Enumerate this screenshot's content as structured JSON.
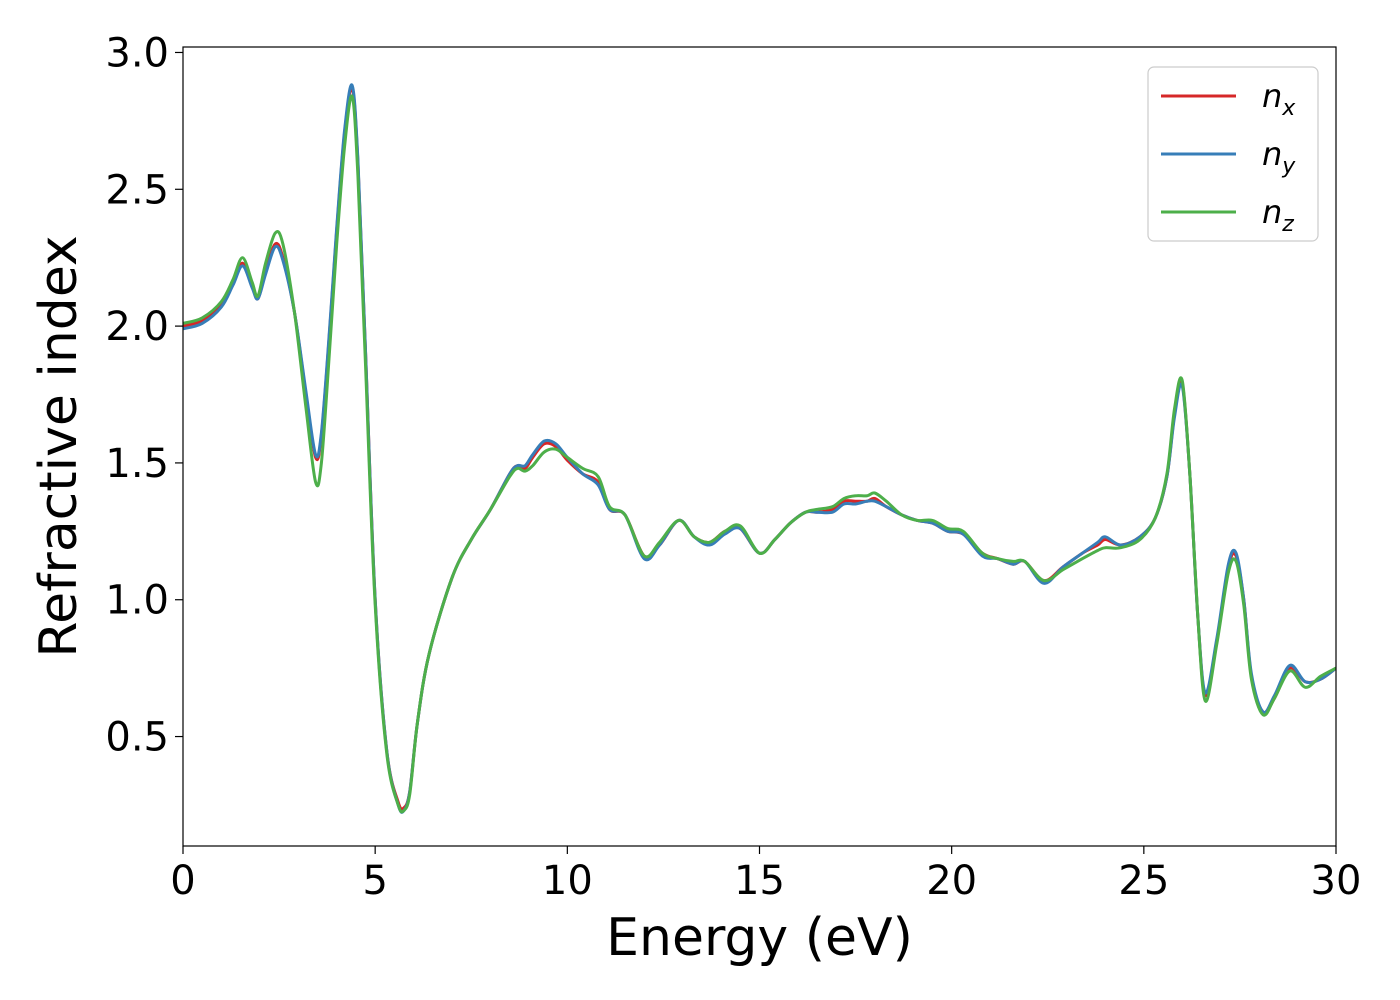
{
  "chart_data": {
    "type": "line",
    "title": "",
    "xlabel": "Energy (eV)",
    "ylabel": "Refractive index",
    "xlim": [
      0,
      30
    ],
    "ylim": [
      0.1,
      3.02
    ],
    "xticks": [
      0,
      5,
      10,
      15,
      20,
      25,
      30
    ],
    "yticks": [
      0.5,
      1.0,
      1.5,
      2.0,
      2.5,
      3.0
    ],
    "xtick_labels": [
      "0",
      "5",
      "10",
      "15",
      "20",
      "25",
      "30"
    ],
    "ytick_labels": [
      "0.5",
      "1.0",
      "1.5",
      "2.0",
      "2.5",
      "3.0"
    ],
    "grid": false,
    "legend_position": "top-right",
    "series": [
      {
        "name": "n_x",
        "legend_base": "n",
        "legend_sub": "x",
        "color": "#d62728",
        "x": [
          0,
          0.5,
          1.0,
          1.3,
          1.55,
          1.8,
          1.95,
          2.15,
          2.4,
          2.6,
          2.9,
          3.2,
          3.45,
          3.6,
          3.8,
          4.0,
          4.2,
          4.4,
          4.55,
          4.75,
          5.0,
          5.3,
          5.6,
          5.75,
          5.9,
          6.1,
          6.4,
          7.0,
          7.5,
          8.0,
          8.5,
          8.7,
          8.9,
          9.1,
          9.4,
          9.7,
          10.0,
          10.4,
          10.8,
          11.1,
          11.5,
          12.0,
          12.4,
          12.9,
          13.3,
          13.7,
          14.1,
          14.5,
          15.0,
          15.4,
          15.8,
          16.2,
          16.5,
          16.9,
          17.2,
          17.5,
          17.8,
          18.0,
          18.3,
          18.7,
          19.1,
          19.5,
          19.9,
          20.3,
          20.8,
          21.2,
          21.6,
          21.9,
          22.4,
          22.9,
          23.4,
          23.8,
          24.0,
          24.4,
          24.9,
          25.3,
          25.6,
          25.8,
          26.0,
          26.2,
          26.4,
          26.6,
          26.9,
          27.2,
          27.4,
          27.6,
          27.8,
          28.1,
          28.4,
          28.8,
          29.2,
          29.6,
          30.0
        ],
        "values": [
          2.0,
          2.02,
          2.08,
          2.16,
          2.23,
          2.15,
          2.1,
          2.2,
          2.3,
          2.25,
          2.05,
          1.75,
          1.52,
          1.6,
          1.95,
          2.35,
          2.7,
          2.87,
          2.6,
          1.9,
          1.0,
          0.45,
          0.26,
          0.24,
          0.3,
          0.55,
          0.8,
          1.08,
          1.22,
          1.33,
          1.46,
          1.49,
          1.48,
          1.52,
          1.57,
          1.56,
          1.51,
          1.46,
          1.43,
          1.33,
          1.31,
          1.16,
          1.2,
          1.29,
          1.23,
          1.21,
          1.25,
          1.26,
          1.17,
          1.22,
          1.28,
          1.32,
          1.32,
          1.33,
          1.36,
          1.36,
          1.36,
          1.37,
          1.34,
          1.31,
          1.29,
          1.28,
          1.25,
          1.24,
          1.17,
          1.15,
          1.13,
          1.14,
          1.07,
          1.12,
          1.17,
          1.2,
          1.22,
          1.2,
          1.23,
          1.3,
          1.45,
          1.68,
          1.79,
          1.45,
          0.95,
          0.65,
          0.85,
          1.12,
          1.16,
          1.0,
          0.72,
          0.59,
          0.64,
          0.75,
          0.7,
          0.71,
          0.75
        ]
      },
      {
        "name": "n_y",
        "legend_base": "n",
        "legend_sub": "y",
        "color": "#377eb8",
        "x": [
          0,
          0.5,
          1.0,
          1.3,
          1.55,
          1.8,
          1.95,
          2.15,
          2.4,
          2.6,
          2.9,
          3.2,
          3.45,
          3.6,
          3.8,
          4.0,
          4.2,
          4.4,
          4.55,
          4.75,
          5.0,
          5.3,
          5.6,
          5.75,
          5.9,
          6.1,
          6.4,
          7.0,
          7.5,
          8.0,
          8.5,
          8.7,
          8.9,
          9.1,
          9.4,
          9.7,
          10.0,
          10.4,
          10.8,
          11.1,
          11.5,
          12.0,
          12.4,
          12.9,
          13.3,
          13.7,
          14.1,
          14.5,
          15.0,
          15.4,
          15.8,
          16.2,
          16.5,
          16.9,
          17.2,
          17.5,
          17.8,
          18.0,
          18.3,
          18.7,
          19.1,
          19.5,
          19.9,
          20.3,
          20.8,
          21.2,
          21.6,
          21.9,
          22.4,
          22.9,
          23.4,
          23.8,
          24.0,
          24.4,
          24.9,
          25.3,
          25.6,
          25.8,
          26.0,
          26.2,
          26.4,
          26.6,
          26.9,
          27.2,
          27.4,
          27.6,
          27.8,
          28.1,
          28.4,
          28.8,
          29.2,
          29.6,
          30.0
        ],
        "values": [
          1.99,
          2.01,
          2.07,
          2.15,
          2.22,
          2.14,
          2.1,
          2.19,
          2.29,
          2.24,
          2.05,
          1.76,
          1.53,
          1.61,
          1.96,
          2.36,
          2.71,
          2.88,
          2.61,
          1.9,
          1.0,
          0.45,
          0.25,
          0.23,
          0.3,
          0.55,
          0.8,
          1.08,
          1.22,
          1.33,
          1.46,
          1.49,
          1.49,
          1.53,
          1.58,
          1.57,
          1.52,
          1.46,
          1.42,
          1.33,
          1.31,
          1.15,
          1.2,
          1.29,
          1.23,
          1.2,
          1.24,
          1.26,
          1.17,
          1.22,
          1.28,
          1.32,
          1.32,
          1.32,
          1.35,
          1.35,
          1.36,
          1.36,
          1.34,
          1.31,
          1.29,
          1.28,
          1.25,
          1.24,
          1.16,
          1.15,
          1.13,
          1.14,
          1.06,
          1.12,
          1.17,
          1.21,
          1.23,
          1.2,
          1.23,
          1.3,
          1.45,
          1.67,
          1.78,
          1.45,
          0.95,
          0.66,
          0.86,
          1.13,
          1.17,
          1.0,
          0.73,
          0.59,
          0.65,
          0.76,
          0.7,
          0.71,
          0.75
        ]
      },
      {
        "name": "n_z",
        "legend_base": "n",
        "legend_sub": "z",
        "color": "#4daf4a",
        "x": [
          0,
          0.5,
          1.0,
          1.3,
          1.55,
          1.8,
          1.95,
          2.15,
          2.4,
          2.6,
          2.9,
          3.2,
          3.45,
          3.6,
          3.8,
          4.0,
          4.2,
          4.4,
          4.55,
          4.75,
          5.0,
          5.3,
          5.6,
          5.75,
          5.9,
          6.1,
          6.4,
          7.0,
          7.5,
          8.0,
          8.5,
          8.7,
          8.9,
          9.1,
          9.4,
          9.7,
          10.0,
          10.4,
          10.8,
          11.1,
          11.5,
          12.0,
          12.4,
          12.9,
          13.3,
          13.7,
          14.1,
          14.5,
          15.0,
          15.4,
          15.8,
          16.2,
          16.5,
          16.9,
          17.2,
          17.5,
          17.8,
          18.0,
          18.3,
          18.7,
          19.1,
          19.5,
          19.9,
          20.3,
          20.8,
          21.2,
          21.6,
          21.9,
          22.4,
          22.9,
          23.4,
          23.8,
          24.0,
          24.4,
          24.9,
          25.3,
          25.6,
          25.8,
          26.0,
          26.2,
          26.4,
          26.6,
          26.9,
          27.2,
          27.4,
          27.6,
          27.8,
          28.1,
          28.4,
          28.8,
          29.2,
          29.6,
          30.0
        ],
        "values": [
          2.01,
          2.03,
          2.09,
          2.17,
          2.25,
          2.16,
          2.11,
          2.23,
          2.34,
          2.3,
          2.05,
          1.7,
          1.43,
          1.5,
          1.88,
          2.3,
          2.65,
          2.84,
          2.55,
          1.85,
          0.98,
          0.44,
          0.25,
          0.23,
          0.29,
          0.55,
          0.8,
          1.08,
          1.22,
          1.33,
          1.45,
          1.48,
          1.47,
          1.49,
          1.54,
          1.55,
          1.52,
          1.48,
          1.45,
          1.34,
          1.31,
          1.16,
          1.21,
          1.29,
          1.23,
          1.21,
          1.25,
          1.27,
          1.17,
          1.22,
          1.28,
          1.32,
          1.33,
          1.34,
          1.37,
          1.38,
          1.38,
          1.39,
          1.36,
          1.31,
          1.29,
          1.29,
          1.26,
          1.25,
          1.17,
          1.15,
          1.14,
          1.14,
          1.07,
          1.11,
          1.15,
          1.18,
          1.19,
          1.19,
          1.22,
          1.3,
          1.46,
          1.7,
          1.8,
          1.45,
          0.95,
          0.63,
          0.84,
          1.1,
          1.14,
          0.98,
          0.71,
          0.58,
          0.64,
          0.74,
          0.68,
          0.72,
          0.75
        ]
      }
    ]
  }
}
